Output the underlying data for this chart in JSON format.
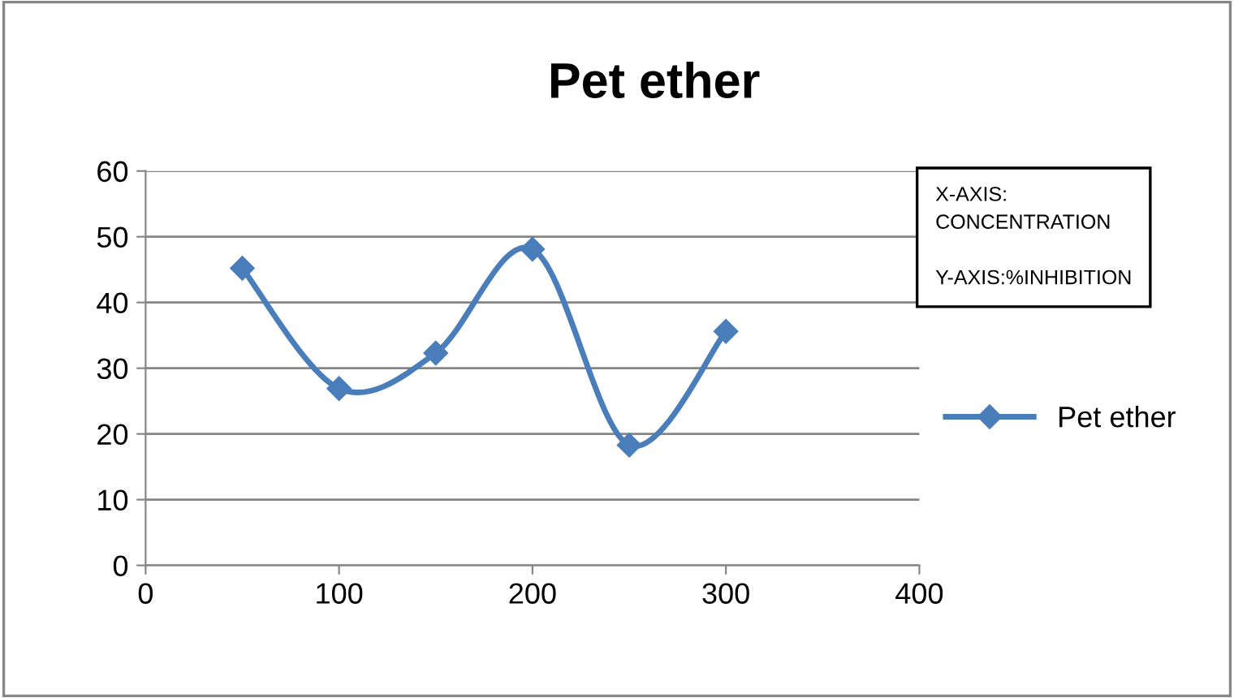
{
  "chart_data": {
    "type": "line",
    "title": "Pet ether",
    "x": [
      50,
      100,
      150,
      200,
      250,
      300
    ],
    "series": [
      {
        "name": "Pet ether",
        "color": "#4a7ebb",
        "values": [
          45.2,
          26.9,
          32.3,
          48.1,
          18.3,
          35.6
        ]
      }
    ],
    "xlim": [
      0,
      400
    ],
    "xticks": [
      0,
      100,
      200,
      300,
      400
    ],
    "ylim": [
      0,
      60
    ],
    "yticks": [
      0,
      10,
      20,
      30,
      40,
      50,
      60
    ],
    "grid": "y",
    "legend": "right",
    "marker": "diamond",
    "line_style": "solid",
    "annotations": [
      "X-AXIS:\nCONCENTRATION\n\nY-AXIS:%INHIBITION"
    ]
  }
}
